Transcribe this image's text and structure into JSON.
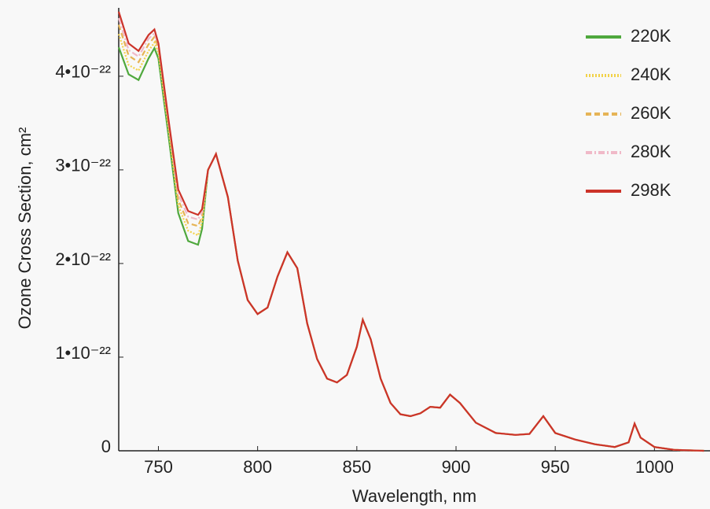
{
  "chart_data": {
    "type": "line",
    "x_label": "Wavelength, nm",
    "y_label": "Ozone Cross Section, cm²",
    "x": [
      730,
      735,
      740,
      745,
      748,
      750,
      755,
      760,
      765,
      770,
      772,
      775,
      779,
      785,
      790,
      795,
      800,
      805,
      810,
      815,
      820,
      825,
      830,
      835,
      840,
      845,
      850,
      853,
      857,
      862,
      867,
      872,
      877,
      882,
      887,
      892,
      897,
      902,
      910,
      920,
      930,
      937,
      944,
      950,
      960,
      970,
      980,
      987,
      990,
      993,
      1000,
      1010,
      1025
    ],
    "series": [
      {
        "name": "220K",
        "color": "#4fa83d",
        "dash": "none",
        "values": [
          4.31e-22,
          4.02e-22,
          3.96e-22,
          4.19e-22,
          4.3e-22,
          4.19e-22,
          3.38e-22,
          2.54e-22,
          2.24e-22,
          2.2e-22,
          2.37e-22,
          3e-22,
          3.17e-22,
          2.71e-22,
          2.03e-22,
          1.61e-22,
          1.46e-22,
          1.53e-22,
          1.86e-22,
          2.12e-22,
          1.95e-22,
          1.36e-22,
          9.8e-23,
          7.7e-23,
          7.3e-23,
          8.1e-23,
          1.11e-22,
          1.4e-22,
          1.19e-22,
          7.7e-23,
          5.1e-23,
          3.9e-23,
          3.7e-23,
          4e-23,
          4.7e-23,
          4.6e-23,
          6e-23,
          5.1e-23,
          3e-23,
          1.9e-23,
          1.7e-23,
          1.8e-23,
          3.7e-23,
          1.9e-23,
          1.2e-23,
          7e-24,
          4e-24,
          9e-24,
          2.9e-23,
          1.4e-23,
          4e-24,
          1e-24,
          0
        ]
      },
      {
        "name": "240K",
        "color": "#f2d24a",
        "dash": "2,2",
        "values": [
          4.45e-22,
          4.12e-22,
          4.06e-22,
          4.27e-22,
          4.36e-22,
          4.25e-22,
          3.45e-22,
          2.62e-22,
          2.35e-22,
          2.3e-22,
          2.44e-22,
          3e-22,
          3.17e-22,
          2.71e-22,
          2.03e-22,
          1.61e-22,
          1.46e-22,
          1.53e-22,
          1.86e-22,
          2.12e-22,
          1.95e-22,
          1.36e-22,
          9.8e-23,
          7.7e-23,
          7.3e-23,
          8.1e-23,
          1.11e-22,
          1.4e-22,
          1.19e-22,
          7.7e-23,
          5.1e-23,
          3.9e-23,
          3.7e-23,
          4e-23,
          4.7e-23,
          4.6e-23,
          6e-23,
          5.1e-23,
          3e-23,
          1.9e-23,
          1.7e-23,
          1.8e-23,
          3.7e-23,
          1.9e-23,
          1.2e-23,
          7e-24,
          4e-24,
          9e-24,
          2.9e-23,
          1.4e-23,
          4e-24,
          1e-24,
          0
        ]
      },
      {
        "name": "260K",
        "color": "#e6b456",
        "dash": "7,4",
        "values": [
          4.55e-22,
          4.22e-22,
          4.15e-22,
          4.34e-22,
          4.42e-22,
          4.3e-22,
          3.5e-22,
          2.68e-22,
          2.43e-22,
          2.4e-22,
          2.5e-22,
          3e-22,
          3.17e-22,
          2.71e-22,
          2.03e-22,
          1.61e-22,
          1.46e-22,
          1.53e-22,
          1.86e-22,
          2.12e-22,
          1.95e-22,
          1.36e-22,
          9.8e-23,
          7.7e-23,
          7.3e-23,
          8.1e-23,
          1.11e-22,
          1.4e-22,
          1.19e-22,
          7.7e-23,
          5.1e-23,
          3.9e-23,
          3.7e-23,
          4e-23,
          4.7e-23,
          4.6e-23,
          6e-23,
          5.1e-23,
          3e-23,
          1.9e-23,
          1.7e-23,
          1.8e-23,
          3.7e-23,
          1.9e-23,
          1.2e-23,
          7e-24,
          4e-24,
          9e-24,
          2.9e-23,
          1.4e-23,
          4e-24,
          1e-24,
          0
        ]
      },
      {
        "name": "280K",
        "color": "#f0b9c8",
        "dash": "8,3,2,3",
        "values": [
          4.62e-22,
          4.28e-22,
          4.21e-22,
          4.4e-22,
          4.46e-22,
          4.33e-22,
          3.53e-22,
          2.74e-22,
          2.5e-22,
          2.47e-22,
          2.55e-22,
          3e-22,
          3.17e-22,
          2.71e-22,
          2.03e-22,
          1.61e-22,
          1.46e-22,
          1.53e-22,
          1.86e-22,
          2.12e-22,
          1.95e-22,
          1.36e-22,
          9.8e-23,
          7.7e-23,
          7.3e-23,
          8.1e-23,
          1.11e-22,
          1.4e-22,
          1.19e-22,
          7.7e-23,
          5.1e-23,
          3.9e-23,
          3.7e-23,
          4e-23,
          4.7e-23,
          4.6e-23,
          6e-23,
          5.1e-23,
          3e-23,
          1.9e-23,
          1.7e-23,
          1.8e-23,
          3.7e-23,
          1.9e-23,
          1.2e-23,
          7e-24,
          4e-24,
          9e-24,
          2.9e-23,
          1.4e-23,
          4e-24,
          1e-24,
          0
        ]
      },
      {
        "name": "298K",
        "color": "#cc3329",
        "dash": "none",
        "values": [
          4.69e-22,
          4.35e-22,
          4.27e-22,
          4.44e-22,
          4.5e-22,
          4.35e-22,
          3.55e-22,
          2.79e-22,
          2.56e-22,
          2.52e-22,
          2.58e-22,
          3e-22,
          3.17e-22,
          2.71e-22,
          2.03e-22,
          1.61e-22,
          1.46e-22,
          1.53e-22,
          1.86e-22,
          2.12e-22,
          1.95e-22,
          1.36e-22,
          9.8e-23,
          7.7e-23,
          7.3e-23,
          8.1e-23,
          1.11e-22,
          1.4e-22,
          1.19e-22,
          7.7e-23,
          5.1e-23,
          3.9e-23,
          3.7e-23,
          4e-23,
          4.7e-23,
          4.6e-23,
          6e-23,
          5.1e-23,
          3e-23,
          1.9e-23,
          1.7e-23,
          1.8e-23,
          3.7e-23,
          1.9e-23,
          1.2e-23,
          7e-24,
          4e-24,
          9e-24,
          2.9e-23,
          1.4e-23,
          4e-24,
          1e-24,
          0
        ]
      }
    ],
    "xlim": [
      730,
      1028
    ],
    "xticks": [
      750,
      800,
      850,
      900,
      950,
      1000
    ],
    "ylim": [
      0,
      4.73e-22
    ],
    "yticks": [
      0,
      {
        "value": 1e-22,
        "label": "1•10⁻²²"
      },
      {
        "value": 2e-22,
        "label": "2•10⁻²²"
      },
      {
        "value": 3e-22,
        "label": "3•10⁻²²"
      },
      {
        "value": 4e-22,
        "label": "4•10⁻²²"
      }
    ],
    "grid": false,
    "legend": "upper right"
  }
}
